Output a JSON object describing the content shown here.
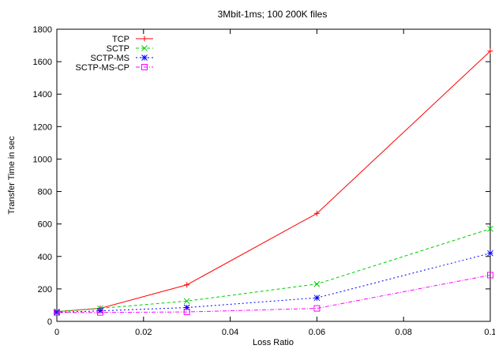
{
  "chart_data": {
    "type": "line",
    "title": "3Mbit-1ms; 100 200K files",
    "xlabel": "Loss Ratio",
    "ylabel": "Transfer Time in sec",
    "xlim": [
      0,
      0.1
    ],
    "ylim": [
      0,
      1800
    ],
    "xticks": [
      "0",
      "0.02",
      "0.04",
      "0.06",
      "0.08",
      "0.1"
    ],
    "xtick_values": [
      0,
      0.02,
      0.04,
      0.06,
      0.08,
      0.1
    ],
    "yticks": [
      "0",
      "200",
      "400",
      "600",
      "800",
      "1000",
      "1200",
      "1400",
      "1600",
      "1800"
    ],
    "ytick_values": [
      0,
      200,
      400,
      600,
      800,
      1000,
      1200,
      1400,
      1600,
      1800
    ],
    "grid": false,
    "legend_position": "top-left",
    "x": [
      0,
      0.01,
      0.03,
      0.06,
      0.1
    ],
    "series": [
      {
        "name": "TCP",
        "color": "#ff0000",
        "marker": "plus",
        "dash": "",
        "values": [
          60,
          80,
          225,
          665,
          1665
        ]
      },
      {
        "name": "SCTP",
        "color": "#00d000",
        "marker": "cross",
        "dash": "4,3",
        "values": [
          60,
          80,
          125,
          230,
          570
        ]
      },
      {
        "name": "SCTP-MS",
        "color": "#0000ff",
        "marker": "star",
        "dash": "2,3",
        "values": [
          55,
          65,
          85,
          145,
          420
        ]
      },
      {
        "name": "SCTP-MS-CP",
        "color": "#ff00ff",
        "marker": "square",
        "dash": "5,2,1,2",
        "values": [
          55,
          55,
          58,
          80,
          285
        ]
      }
    ]
  }
}
